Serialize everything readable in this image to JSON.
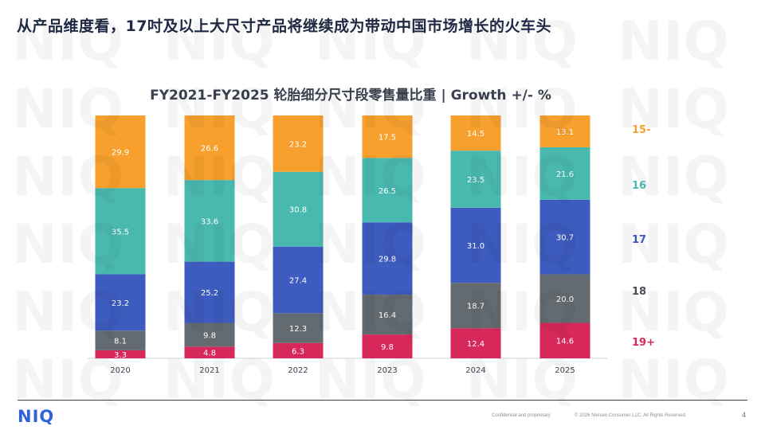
{
  "slide": {
    "headline": "从产品维度看，17吋及以上大尺寸产品将继续成为带动中国市场增长的火车头",
    "watermark_text": "NIQ",
    "logo": "NIQ",
    "confidential": "Confidential and proprietary",
    "copyright": "© 2026 Nielsen Consumer LLC. All Rights Reserved.",
    "page_number": "4"
  },
  "chart_data": {
    "type": "bar",
    "stacked": true,
    "title": "FY2021-FY2025 轮胎细分尺寸段零售量比重 | Growth +/- %",
    "categories": [
      "2020",
      "2021",
      "2022",
      "2023",
      "2024",
      "2025"
    ],
    "ylim": [
      0,
      100
    ],
    "series": [
      {
        "name": "19+",
        "color": "#d6285a",
        "values": [
          3.3,
          4.8,
          6.3,
          9.8,
          12.4,
          14.6
        ]
      },
      {
        "name": "18",
        "color": "#636b70",
        "values": [
          8.1,
          9.8,
          12.3,
          16.4,
          18.7,
          20.0
        ]
      },
      {
        "name": "17",
        "color": "#3e5bbf",
        "values": [
          23.2,
          25.2,
          27.4,
          29.8,
          31.0,
          30.7
        ]
      },
      {
        "name": "16",
        "color": "#49b9b0",
        "values": [
          35.5,
          33.6,
          30.8,
          26.5,
          23.5,
          21.6
        ]
      },
      {
        "name": "15-",
        "color": "#f7a02d",
        "values": [
          29.9,
          26.6,
          23.2,
          17.5,
          14.5,
          13.1
        ]
      }
    ]
  }
}
